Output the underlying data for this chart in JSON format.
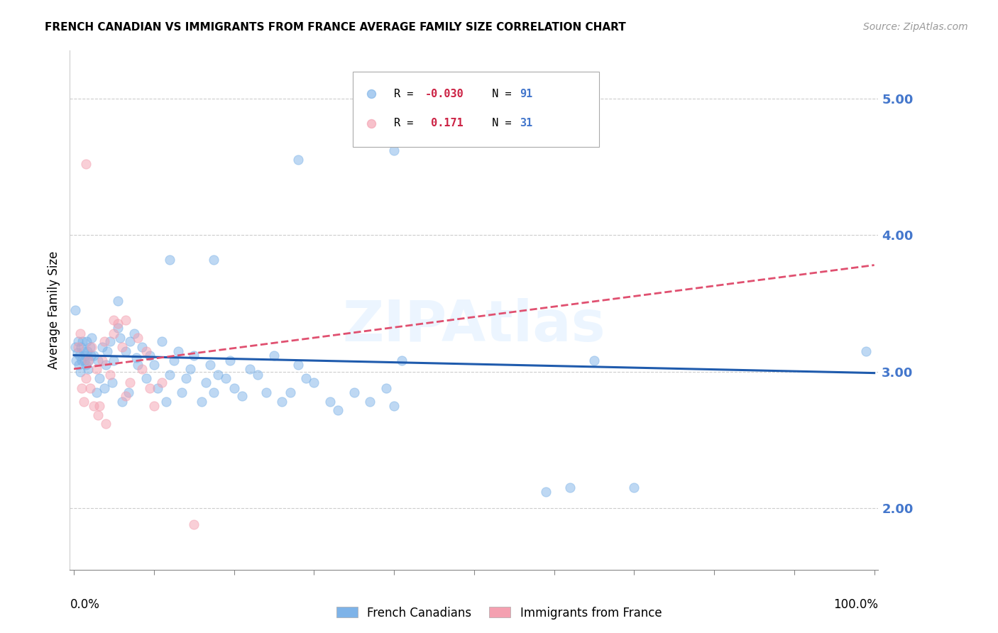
{
  "title": "FRENCH CANADIAN VS IMMIGRANTS FROM FRANCE AVERAGE FAMILY SIZE CORRELATION CHART",
  "source": "Source: ZipAtlas.com",
  "ylabel": "Average Family Size",
  "yticks": [
    2.0,
    3.0,
    4.0,
    5.0
  ],
  "ytick_labels": [
    "2.00",
    "3.00",
    "4.00",
    "5.00"
  ],
  "ymin": 1.55,
  "ymax": 5.35,
  "xmin": -0.005,
  "xmax": 1.005,
  "watermark": "ZIPAtlas",
  "blue_color": "#7EB3E8",
  "pink_color": "#F4A0B0",
  "trend_blue": "#1F5BAD",
  "trend_pink": "#E05070",
  "tick_color": "#4477CC",
  "grid_color": "#CCCCCC",
  "blue_scatter": [
    [
      0.002,
      3.18
    ],
    [
      0.003,
      3.08
    ],
    [
      0.004,
      3.14
    ],
    [
      0.005,
      3.22
    ],
    [
      0.006,
      3.05
    ],
    [
      0.007,
      3.12
    ],
    [
      0.008,
      3.0
    ],
    [
      0.009,
      3.18
    ],
    [
      0.01,
      3.08
    ],
    [
      0.011,
      3.22
    ],
    [
      0.012,
      3.15
    ],
    [
      0.013,
      3.08
    ],
    [
      0.014,
      3.12
    ],
    [
      0.015,
      3.05
    ],
    [
      0.016,
      3.22
    ],
    [
      0.017,
      3.15
    ],
    [
      0.018,
      3.02
    ],
    [
      0.019,
      3.08
    ],
    [
      0.02,
      3.18
    ],
    [
      0.021,
      3.12
    ],
    [
      0.022,
      3.25
    ],
    [
      0.025,
      3.12
    ],
    [
      0.028,
      2.85
    ],
    [
      0.03,
      3.08
    ],
    [
      0.032,
      2.95
    ],
    [
      0.035,
      3.18
    ],
    [
      0.038,
      2.88
    ],
    [
      0.04,
      3.05
    ],
    [
      0.042,
      3.15
    ],
    [
      0.045,
      3.22
    ],
    [
      0.048,
      2.92
    ],
    [
      0.05,
      3.08
    ],
    [
      0.055,
      3.32
    ],
    [
      0.058,
      3.25
    ],
    [
      0.06,
      2.78
    ],
    [
      0.065,
      3.15
    ],
    [
      0.068,
      2.85
    ],
    [
      0.07,
      3.22
    ],
    [
      0.075,
      3.28
    ],
    [
      0.078,
      3.1
    ],
    [
      0.08,
      3.05
    ],
    [
      0.085,
      3.18
    ],
    [
      0.09,
      2.95
    ],
    [
      0.095,
      3.12
    ],
    [
      0.1,
      3.05
    ],
    [
      0.105,
      2.88
    ],
    [
      0.11,
      3.22
    ],
    [
      0.115,
      2.78
    ],
    [
      0.12,
      2.98
    ],
    [
      0.125,
      3.08
    ],
    [
      0.13,
      3.15
    ],
    [
      0.135,
      2.85
    ],
    [
      0.14,
      2.95
    ],
    [
      0.145,
      3.02
    ],
    [
      0.15,
      3.12
    ],
    [
      0.16,
      2.78
    ],
    [
      0.165,
      2.92
    ],
    [
      0.17,
      3.05
    ],
    [
      0.175,
      2.85
    ],
    [
      0.18,
      2.98
    ],
    [
      0.19,
      2.95
    ],
    [
      0.195,
      3.08
    ],
    [
      0.2,
      2.88
    ],
    [
      0.21,
      2.82
    ],
    [
      0.22,
      3.02
    ],
    [
      0.23,
      2.98
    ],
    [
      0.24,
      2.85
    ],
    [
      0.25,
      3.12
    ],
    [
      0.26,
      2.78
    ],
    [
      0.27,
      2.85
    ],
    [
      0.28,
      3.05
    ],
    [
      0.29,
      2.95
    ],
    [
      0.3,
      2.92
    ],
    [
      0.32,
      2.78
    ],
    [
      0.33,
      2.72
    ],
    [
      0.35,
      2.85
    ],
    [
      0.37,
      2.78
    ],
    [
      0.39,
      2.88
    ],
    [
      0.4,
      2.75
    ],
    [
      0.41,
      3.08
    ],
    [
      0.12,
      3.82
    ],
    [
      0.175,
      3.82
    ],
    [
      0.28,
      4.55
    ],
    [
      0.4,
      4.62
    ],
    [
      0.43,
      4.72
    ],
    [
      0.59,
      2.12
    ],
    [
      0.62,
      2.15
    ],
    [
      0.65,
      3.08
    ],
    [
      0.7,
      2.15
    ],
    [
      0.99,
      3.15
    ],
    [
      0.055,
      3.52
    ],
    [
      0.002,
      3.45
    ]
  ],
  "pink_scatter": [
    [
      0.005,
      3.18
    ],
    [
      0.008,
      3.28
    ],
    [
      0.01,
      2.88
    ],
    [
      0.012,
      2.78
    ],
    [
      0.015,
      2.95
    ],
    [
      0.018,
      3.08
    ],
    [
      0.02,
      2.88
    ],
    [
      0.022,
      3.18
    ],
    [
      0.025,
      2.75
    ],
    [
      0.028,
      3.02
    ],
    [
      0.03,
      2.68
    ],
    [
      0.032,
      2.75
    ],
    [
      0.035,
      3.08
    ],
    [
      0.038,
      3.22
    ],
    [
      0.04,
      2.62
    ],
    [
      0.045,
      2.98
    ],
    [
      0.05,
      3.28
    ],
    [
      0.055,
      3.35
    ],
    [
      0.06,
      3.18
    ],
    [
      0.065,
      2.82
    ],
    [
      0.07,
      2.92
    ],
    [
      0.08,
      3.25
    ],
    [
      0.085,
      3.02
    ],
    [
      0.09,
      3.15
    ],
    [
      0.095,
      2.88
    ],
    [
      0.1,
      2.75
    ],
    [
      0.11,
      2.92
    ],
    [
      0.015,
      4.52
    ],
    [
      0.05,
      3.38
    ],
    [
      0.065,
      3.38
    ],
    [
      0.15,
      1.88
    ]
  ],
  "blue_trend_x": [
    0.0,
    1.0
  ],
  "blue_trend_y": [
    3.12,
    2.99
  ],
  "pink_trend_x": [
    0.0,
    1.0
  ],
  "pink_trend_y": [
    3.02,
    3.78
  ],
  "figsize": [
    14.06,
    8.92
  ],
  "dpi": 100
}
